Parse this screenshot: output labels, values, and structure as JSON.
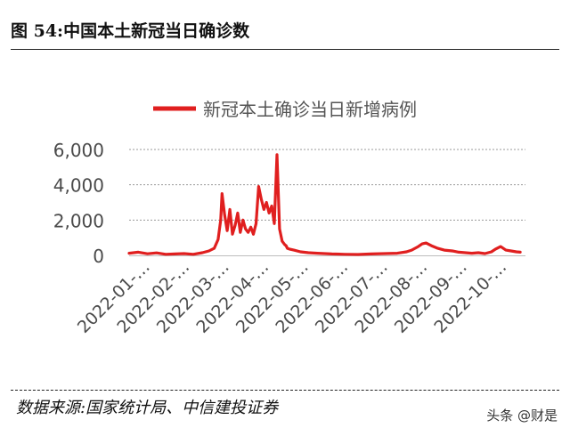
{
  "header": {
    "figure_title": "图 54:中国本土新冠当日确诊数"
  },
  "footer": {
    "source": "数据来源:国家统计局、中信建投证券",
    "watermark": "头条 @财是"
  },
  "chart_data": {
    "type": "line",
    "title": "",
    "xlabel": "",
    "ylabel": "",
    "ylim": [
      0,
      6000
    ],
    "y_ticks": [
      "0",
      "2,000",
      "4,000",
      "6,000"
    ],
    "x_tick_labels": [
      "2022-01-…",
      "2022-02-…",
      "2022-03-…",
      "2022-04-…",
      "2022-05-…",
      "2022-06-…",
      "2022-07-…",
      "2022-08-…",
      "2022-09-…",
      "2022-10-…"
    ],
    "grid": "horizontal dotted",
    "legend_position": "top-center",
    "line_color": "#e01f1f",
    "series": [
      {
        "name": "新冠本土确诊当日新增病例",
        "x": [
          "2022-01-01",
          "2022-01-08",
          "2022-01-15",
          "2022-01-22",
          "2022-01-29",
          "2022-02-05",
          "2022-02-12",
          "2022-02-19",
          "2022-02-26",
          "2022-03-03",
          "2022-03-07",
          "2022-03-10",
          "2022-03-12",
          "2022-03-13",
          "2022-03-15",
          "2022-03-17",
          "2022-03-19",
          "2022-03-21",
          "2022-03-23",
          "2022-03-25",
          "2022-03-27",
          "2022-03-29",
          "2022-03-31",
          "2022-04-02",
          "2022-04-04",
          "2022-04-06",
          "2022-04-08",
          "2022-04-10",
          "2022-04-12",
          "2022-04-14",
          "2022-04-16",
          "2022-04-18",
          "2022-04-20",
          "2022-04-22",
          "2022-04-24",
          "2022-04-26",
          "2022-04-28",
          "2022-04-30",
          "2022-05-01",
          "2022-05-02",
          "2022-05-04",
          "2022-05-07",
          "2022-05-12",
          "2022-05-18",
          "2022-05-25",
          "2022-06-05",
          "2022-06-15",
          "2022-06-25",
          "2022-07-05",
          "2022-07-15",
          "2022-07-25",
          "2022-08-01",
          "2022-08-05",
          "2022-08-10",
          "2022-08-13",
          "2022-08-16",
          "2022-08-20",
          "2022-08-25",
          "2022-08-30",
          "2022-09-05",
          "2022-09-10",
          "2022-09-15",
          "2022-09-20",
          "2022-09-25",
          "2022-09-30",
          "2022-10-05",
          "2022-10-08",
          "2022-10-12",
          "2022-10-16",
          "2022-10-20",
          "2022-10-24",
          "2022-10-27"
        ],
        "values": [
          120,
          180,
          90,
          140,
          60,
          80,
          100,
          60,
          150,
          250,
          400,
          900,
          2000,
          3500,
          2300,
          1400,
          2600,
          1200,
          1700,
          2400,
          1300,
          2000,
          1500,
          1300,
          1600,
          1200,
          1800,
          3900,
          3200,
          2600,
          3000,
          2400,
          2800,
          1800,
          5700,
          1500,
          800,
          600,
          550,
          400,
          350,
          300,
          200,
          150,
          120,
          80,
          60,
          50,
          80,
          100,
          120,
          200,
          300,
          500,
          650,
          700,
          550,
          400,
          300,
          250,
          180,
          150,
          120,
          150,
          100,
          200,
          350,
          500,
          300,
          250,
          200,
          180
        ]
      }
    ]
  }
}
